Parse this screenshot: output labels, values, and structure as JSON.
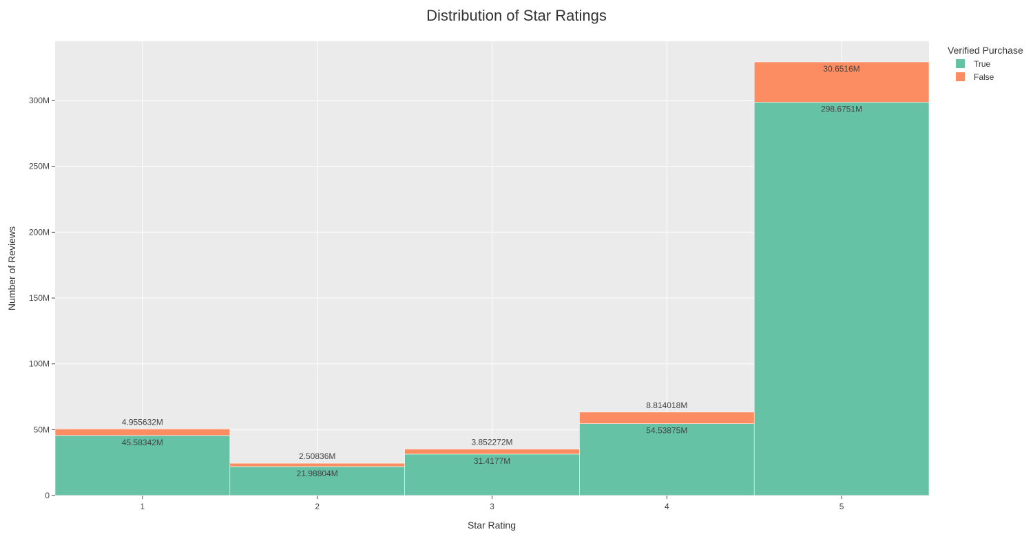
{
  "chart_data": {
    "type": "bar",
    "barmode": "stack",
    "title": "Distribution of Star Ratings",
    "xlabel": "Star Rating",
    "ylabel": "Number of Reviews",
    "categories": [
      "1",
      "2",
      "3",
      "4",
      "5"
    ],
    "ylim": [
      0,
      345000000
    ],
    "yticks": [
      {
        "value": 0,
        "label": "0"
      },
      {
        "value": 50000000,
        "label": "50M"
      },
      {
        "value": 100000000,
        "label": "100M"
      },
      {
        "value": 150000000,
        "label": "150M"
      },
      {
        "value": 200000000,
        "label": "200M"
      },
      {
        "value": 250000000,
        "label": "250M"
      },
      {
        "value": 300000000,
        "label": "300M"
      }
    ],
    "grid": true,
    "legend": {
      "title": "Verified Purchase",
      "placement": "top-right"
    },
    "series": [
      {
        "name": "True",
        "color": "#66c2a5",
        "values": [
          45583420,
          21988040,
          31417700,
          54538750,
          298675100
        ],
        "labels": [
          "45.58342M",
          "21.98804M",
          "31.4177M",
          "54.53875M",
          "298.6751M"
        ]
      },
      {
        "name": "False",
        "color": "#fc8d62",
        "values": [
          4955632,
          2508360,
          3852272,
          8814018,
          30651600
        ],
        "labels": [
          "4.955632M",
          "2.50836M",
          "3.852272M",
          "8.814018M",
          "30.6516M"
        ]
      }
    ]
  }
}
